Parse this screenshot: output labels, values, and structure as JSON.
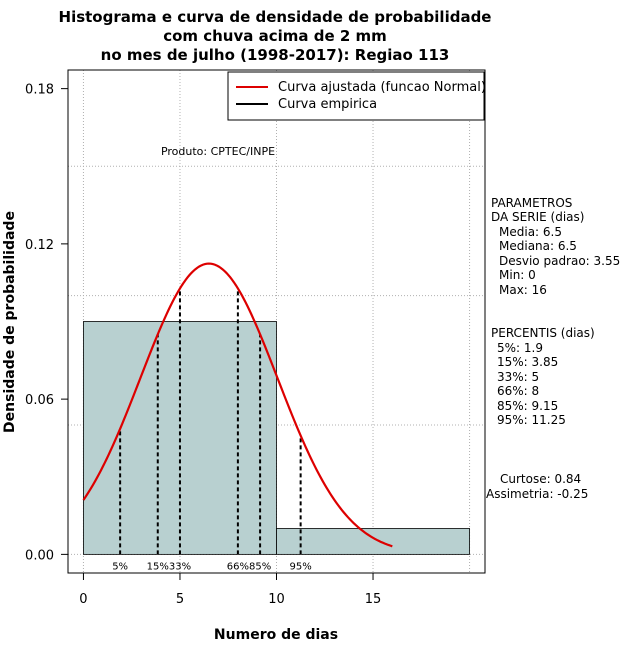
{
  "chart_data": {
    "type": "histogram",
    "title": [
      "Histograma e curva de densidade de probabilidade",
      "com chuva acima de 2 mm",
      "no mes de julho (1998-2017): Regiao 113"
    ],
    "xlabel": "Numero de dias",
    "ylabel": "Densidade de probabilidade",
    "xlim": [
      -0.8,
      20.8
    ],
    "ylim": [
      -0.0072,
      0.1872
    ],
    "x_ticks": [
      0,
      5,
      10,
      15
    ],
    "x_tick_labels": [
      "0",
      "5",
      "10",
      "15"
    ],
    "y_ticks": [
      0.0,
      0.06,
      0.12,
      0.18
    ],
    "y_tick_labels": [
      "0.00",
      "0.06",
      "0.12",
      "0.18"
    ],
    "bins": [
      {
        "start": 0,
        "end": 10,
        "density": 0.09
      },
      {
        "start": 10,
        "end": 20,
        "density": 0.01
      }
    ],
    "bar_color": "#b8d0d0",
    "curve": {
      "name": "Curva ajustada (funcao Normal)",
      "color": "#dd0000",
      "mean": 6.5,
      "sd": 3.55,
      "x_range": [
        0,
        16
      ]
    },
    "legend": [
      {
        "label": "Curva ajustada (funcao Normal)",
        "color": "#dd0000"
      },
      {
        "label": "Curva empirica",
        "color": "#000000"
      }
    ],
    "percentile_lines": [
      {
        "label": "5%",
        "value": 1.9
      },
      {
        "label": "15%",
        "value": 3.85
      },
      {
        "label": "33%",
        "value": 5
      },
      {
        "label": "66%",
        "value": 8
      },
      {
        "label": "85%",
        "value": 9.15
      },
      {
        "label": "95%",
        "value": 11.25
      }
    ],
    "annotation": "Produto: CPTEC/INPE",
    "grid": true
  },
  "side_panel": {
    "params_header": [
      "PARAMETROS",
      "DA SERIE (dias)"
    ],
    "params": [
      "Media: 6.5",
      "Mediana: 6.5",
      "Desvio padrao: 3.55",
      "Min: 0",
      "Max: 16"
    ],
    "percentis_header": "PERCENTIS (dias)",
    "percentis": [
      "5%: 1.9",
      "15%: 3.85",
      "33%: 5",
      "66%: 8",
      "85%: 9.15",
      "95%: 11.25"
    ],
    "curtose": "Curtose: 0.84",
    "assimetria": "Assimetria: -0.25"
  }
}
